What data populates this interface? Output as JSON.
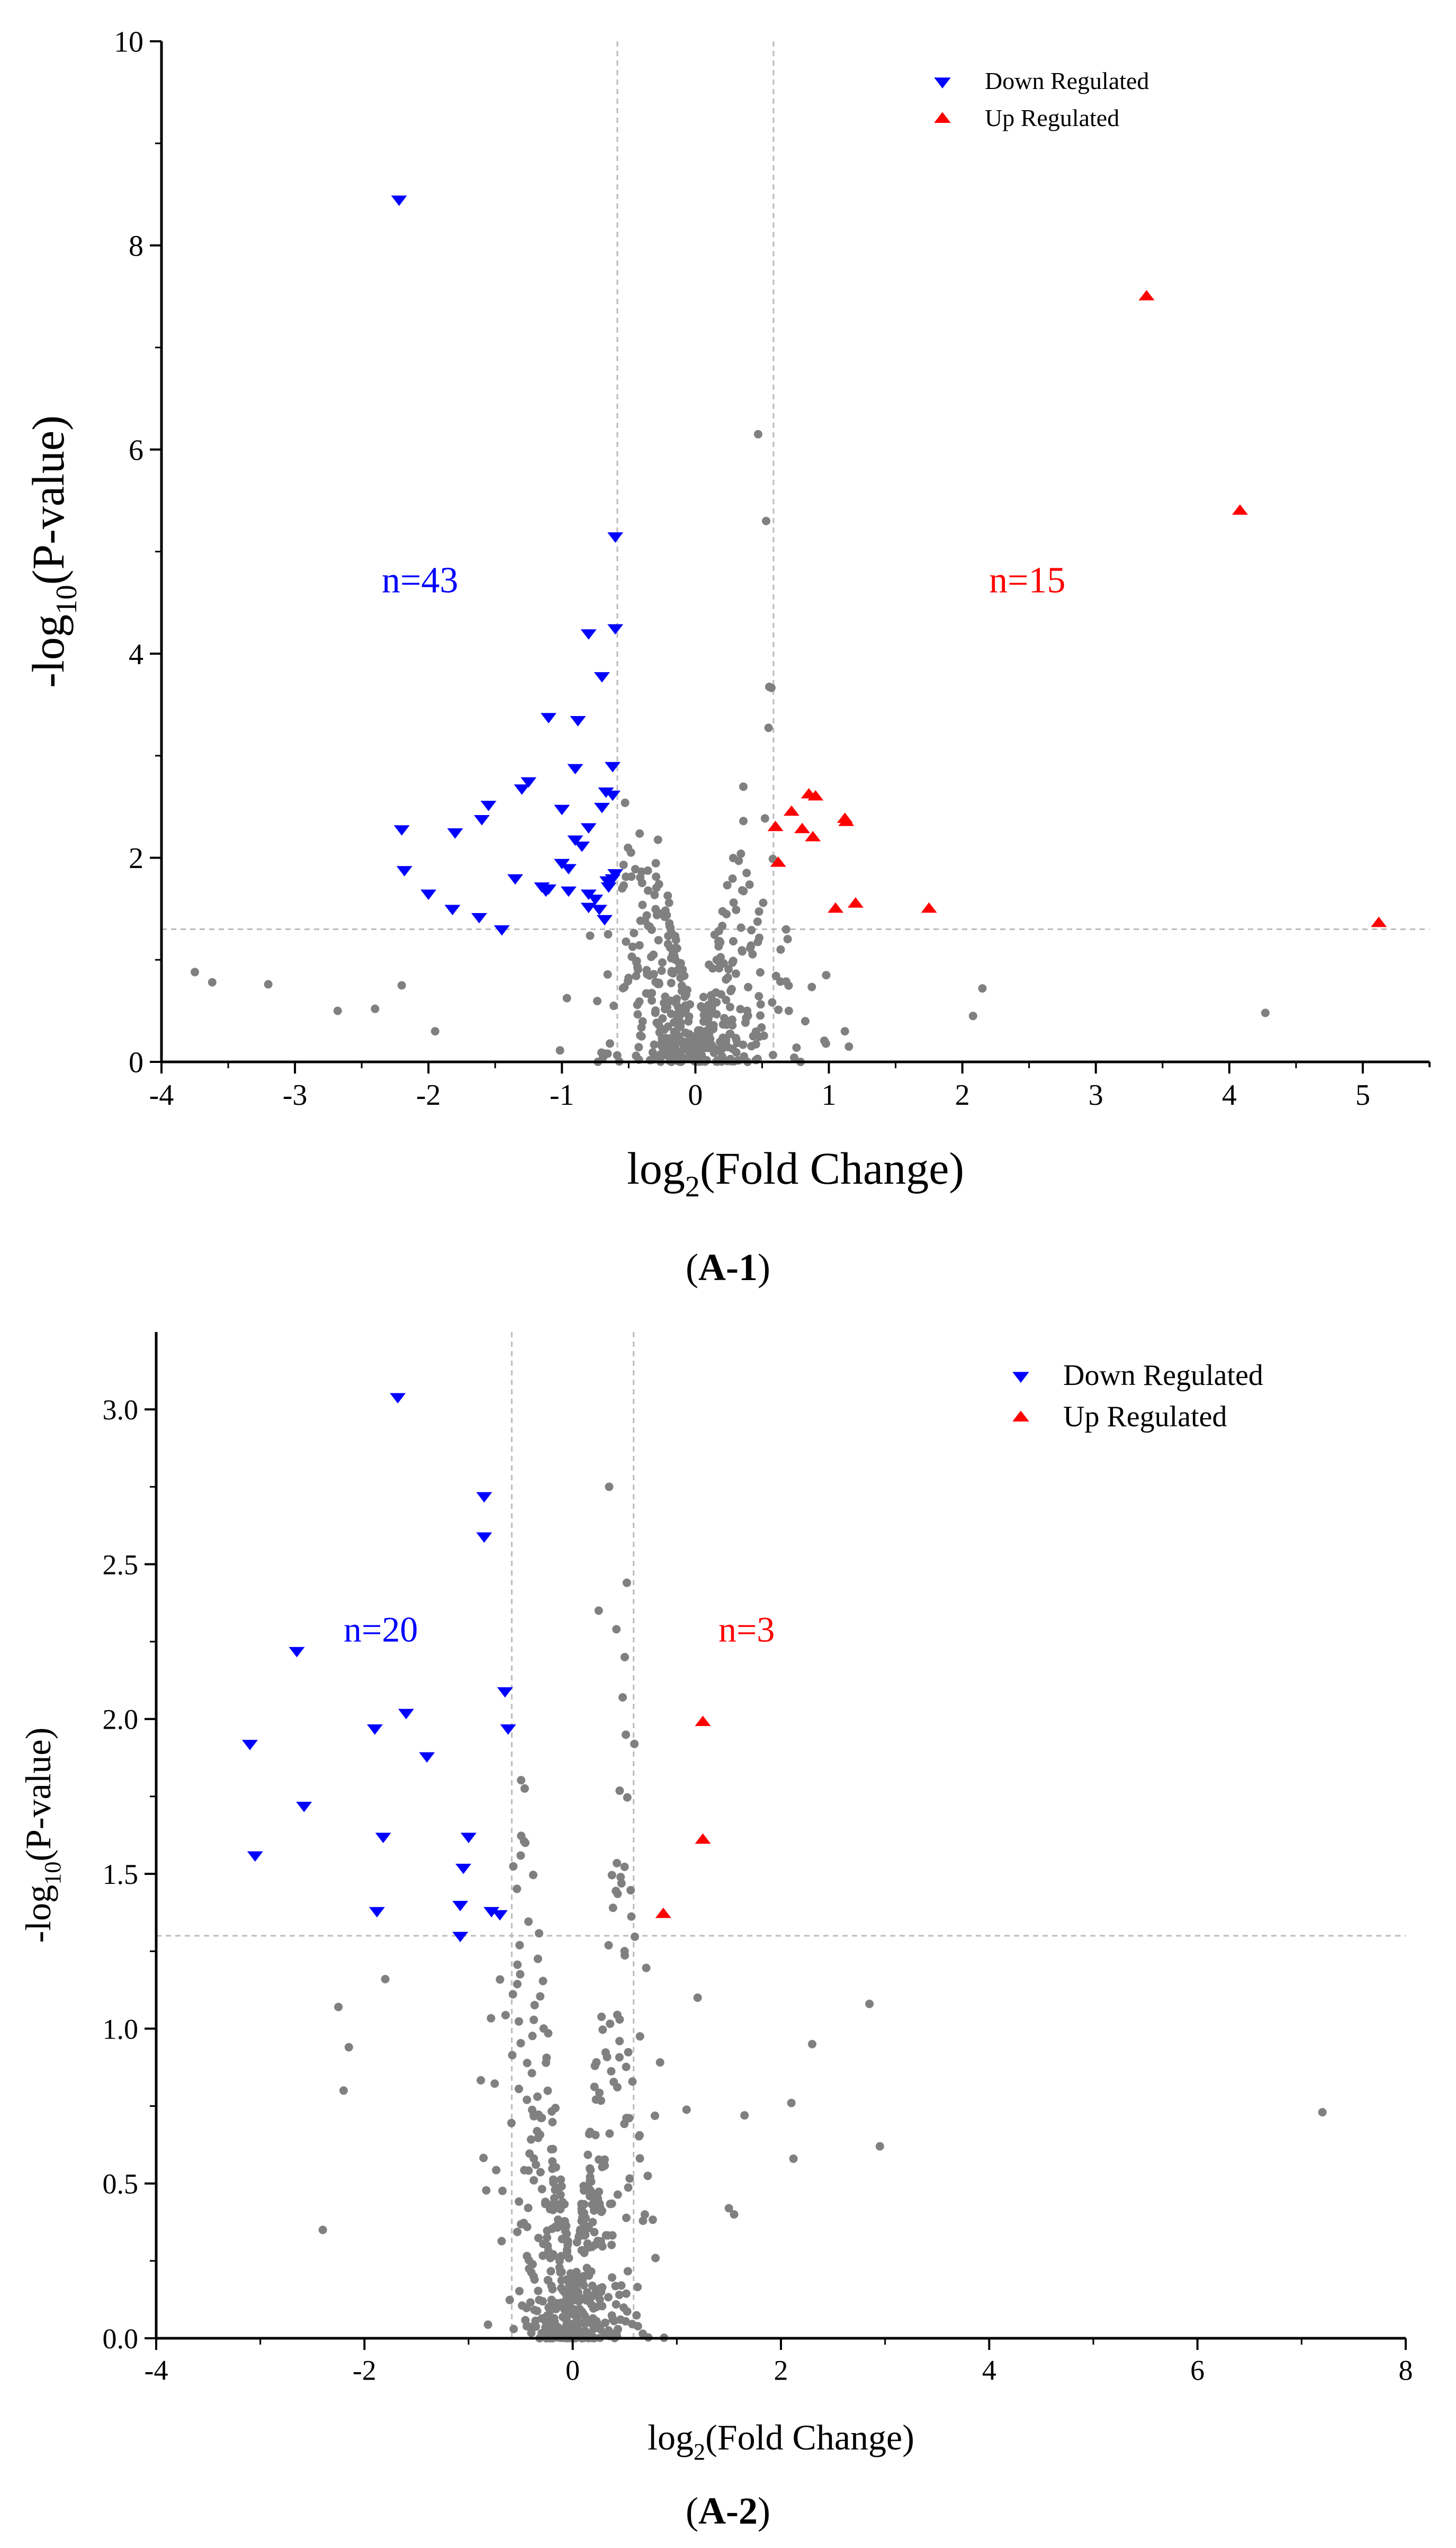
{
  "chart_data": [
    {
      "type": "scatter",
      "subplot_label": "A-1",
      "xlabel": {
        "base": "log",
        "sub": "2",
        "rest": "(Fold Change)"
      },
      "ylabel": {
        "base": "-log",
        "sub": "10",
        "rest": "(P-value)"
      },
      "xlim": [
        -4,
        5.5
      ],
      "ylim": [
        0,
        10
      ],
      "xticks": [
        -4,
        -3,
        -2,
        -1,
        0,
        1,
        2,
        3,
        4,
        5
      ],
      "yticks": [
        0,
        2,
        4,
        6,
        8,
        10
      ],
      "threshold_x": [
        -0.585,
        0.585
      ],
      "threshold_y": 1.3,
      "legend": {
        "position": "top-right",
        "entries": [
          "Down Regulated",
          "Up Regulated"
        ]
      },
      "annotations": [
        {
          "text": "n=43",
          "x": -2.35,
          "y": 4.6,
          "color": "#0000ff"
        },
        {
          "text": "n=15",
          "x": 2.2,
          "y": 4.6,
          "color": "#ff0000"
        }
      ],
      "colors": {
        "down": "#0000ff",
        "up": "#ff0000",
        "ns": "#808080",
        "threshold": "#bbbbbb"
      },
      "series": [
        {
          "name": "Down Regulated",
          "marker": "triangle-down",
          "points": [
            [
              -2.22,
              8.45
            ],
            [
              -0.6,
              5.15
            ],
            [
              -0.6,
              4.25
            ],
            [
              -0.8,
              4.2
            ],
            [
              -0.7,
              3.78
            ],
            [
              -1.1,
              3.38
            ],
            [
              -0.88,
              3.35
            ],
            [
              -1.25,
              2.75
            ],
            [
              -1.3,
              2.68
            ],
            [
              -0.9,
              2.88
            ],
            [
              -0.62,
              2.9
            ],
            [
              -0.67,
              2.65
            ],
            [
              -0.62,
              2.62
            ],
            [
              -0.7,
              2.5
            ],
            [
              -1.0,
              2.48
            ],
            [
              -1.55,
              2.52
            ],
            [
              -1.6,
              2.38
            ],
            [
              -2.2,
              2.28
            ],
            [
              -1.8,
              2.25
            ],
            [
              -0.8,
              2.3
            ],
            [
              -0.85,
              2.12
            ],
            [
              -1.0,
              1.95
            ],
            [
              -0.95,
              1.9
            ],
            [
              -0.62,
              1.8
            ],
            [
              -0.65,
              1.72
            ],
            [
              -1.1,
              1.7
            ],
            [
              -1.12,
              1.68
            ],
            [
              -0.95,
              1.68
            ],
            [
              -0.8,
              1.65
            ],
            [
              -2.18,
              1.88
            ],
            [
              -2.0,
              1.65
            ],
            [
              -1.35,
              1.8
            ],
            [
              -1.82,
              1.5
            ],
            [
              -0.8,
              1.52
            ],
            [
              -0.72,
              1.5
            ],
            [
              -0.68,
              1.4
            ],
            [
              -1.62,
              1.42
            ],
            [
              -1.45,
              1.3
            ],
            [
              -0.75,
              1.6
            ],
            [
              -0.66,
              1.78
            ],
            [
              -0.9,
              2.18
            ],
            [
              -1.15,
              1.72
            ],
            [
              -0.6,
              1.85
            ]
          ]
        },
        {
          "name": "Up Regulated",
          "marker": "triangle-up",
          "points": [
            [
              3.38,
              7.5
            ],
            [
              4.08,
              5.4
            ],
            [
              0.85,
              2.62
            ],
            [
              0.72,
              2.45
            ],
            [
              1.12,
              2.38
            ],
            [
              1.13,
              2.35
            ],
            [
              0.8,
              2.28
            ],
            [
              0.6,
              2.3
            ],
            [
              0.88,
              2.2
            ],
            [
              0.62,
              1.95
            ],
            [
              1.2,
              1.55
            ],
            [
              1.05,
              1.5
            ],
            [
              1.75,
              1.5
            ],
            [
              5.12,
              1.36
            ],
            [
              0.9,
              2.6
            ]
          ]
        }
      ]
    },
    {
      "type": "scatter",
      "subplot_label": "A-2",
      "xlabel": {
        "base": "log",
        "sub": "2",
        "rest": "(Fold Change)"
      },
      "ylabel": {
        "base": "-log",
        "sub": "10",
        "rest": "(P-value)"
      },
      "xlim": [
        -4,
        8
      ],
      "ylim": [
        0,
        3.25
      ],
      "xticks": [
        -4,
        -2,
        0,
        2,
        4,
        6,
        8
      ],
      "yticks": [
        0.0,
        0.5,
        1.0,
        1.5,
        2.0,
        2.5,
        3.0
      ],
      "threshold_x": [
        -0.585,
        0.585
      ],
      "threshold_y": 1.3,
      "legend": {
        "position": "top-right",
        "entries": [
          "Down Regulated",
          "Up Regulated"
        ]
      },
      "annotations": [
        {
          "text": "n=20",
          "x": -2.2,
          "y": 2.25,
          "color": "#0000ff"
        },
        {
          "text": "n=3",
          "x": 1.4,
          "y": 2.25,
          "color": "#ff0000"
        }
      ],
      "colors": {
        "down": "#0000ff",
        "up": "#ff0000",
        "ns": "#808080",
        "threshold": "#bbbbbb"
      },
      "series": [
        {
          "name": "Down Regulated",
          "marker": "triangle-down",
          "points": [
            [
              -1.68,
              3.04
            ],
            [
              -0.85,
              2.72
            ],
            [
              -0.85,
              2.59
            ],
            [
              -2.65,
              2.22
            ],
            [
              -0.65,
              2.09
            ],
            [
              -1.6,
              2.02
            ],
            [
              -1.9,
              1.97
            ],
            [
              -0.62,
              1.97
            ],
            [
              -3.1,
              1.92
            ],
            [
              -1.4,
              1.88
            ],
            [
              -2.58,
              1.72
            ],
            [
              -1.82,
              1.62
            ],
            [
              -1.0,
              1.62
            ],
            [
              -3.05,
              1.56
            ],
            [
              -1.05,
              1.52
            ],
            [
              -1.88,
              1.38
            ],
            [
              -1.08,
              1.4
            ],
            [
              -0.78,
              1.38
            ],
            [
              -0.7,
              1.37
            ],
            [
              -1.08,
              1.3
            ]
          ]
        },
        {
          "name": "Up Regulated",
          "marker": "triangle-up",
          "points": [
            [
              1.25,
              1.99
            ],
            [
              1.25,
              1.61
            ],
            [
              0.87,
              1.37
            ]
          ]
        }
      ]
    }
  ],
  "panel_labels": [
    "A-1",
    "A-2"
  ]
}
